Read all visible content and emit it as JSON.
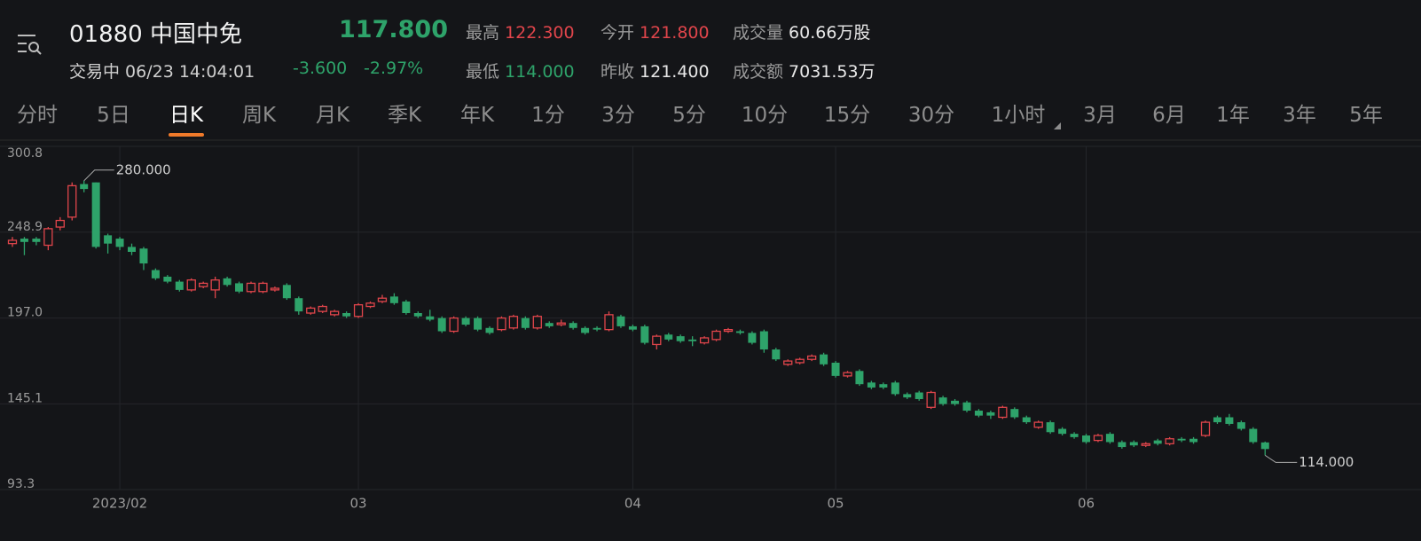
{
  "header": {
    "title": "01880 中国中免",
    "price": "117.800",
    "status": "交易中 06/23 14:04:01",
    "change": "-3.600",
    "change_pct": "-2.97%",
    "stats": [
      {
        "label": "最高",
        "value": "122.300",
        "color": "#e0454b"
      },
      {
        "label": "今开",
        "value": "121.800",
        "color": "#e0454b"
      },
      {
        "label": "成交量",
        "value": "60.66万股",
        "color": "#e8e8e8"
      },
      {
        "label": "最低",
        "value": "114.000",
        "color": "#2ea36a"
      },
      {
        "label": "昨收",
        "value": "121.400",
        "color": "#e8e8e8"
      },
      {
        "label": "成交额",
        "value": "7031.53万",
        "color": "#e8e8e8"
      }
    ]
  },
  "tabs": {
    "items": [
      "分时",
      "5日",
      "日K",
      "周K",
      "月K",
      "季K",
      "年K",
      "1分",
      "3分",
      "5分",
      "10分",
      "15分",
      "30分",
      "1小时",
      "3月",
      "6月",
      "1年",
      "3年",
      "5年"
    ],
    "active": 2
  },
  "chart_data": {
    "type": "candlestick",
    "up_color": "#e0454b",
    "down_color": "#2ea36a",
    "grid": true,
    "ylim": [
      93.3,
      300.8
    ],
    "yticks": [
      300.8,
      248.9,
      {
        "value": 197,
        "label": "197.0"
      },
      145.1,
      93.3
    ],
    "annotations": [
      "280.000",
      "114.000"
    ],
    "categories": [
      null,
      null,
      null,
      null,
      null,
      null,
      null,
      null,
      null,
      "2023/02",
      null,
      null,
      null,
      null,
      null,
      null,
      null,
      null,
      null,
      null,
      null,
      null,
      null,
      null,
      null,
      null,
      null,
      null,
      null,
      "03",
      null,
      null,
      null,
      null,
      null,
      null,
      null,
      null,
      null,
      null,
      null,
      null,
      null,
      null,
      null,
      null,
      null,
      null,
      null,
      null,
      null,
      null,
      "04",
      null,
      null,
      null,
      null,
      null,
      null,
      null,
      null,
      null,
      null,
      null,
      null,
      null,
      null,
      null,
      null,
      "05",
      null,
      null,
      null,
      null,
      null,
      null,
      null,
      null,
      null,
      null,
      null,
      null,
      null,
      null,
      null,
      null,
      null,
      null,
      null,
      null,
      "06",
      null,
      null,
      null,
      null,
      null,
      null,
      null,
      null,
      null,
      null,
      null,
      null,
      null,
      null,
      null
    ],
    "open": [
      242,
      245,
      245,
      241,
      252,
      258,
      278,
      279,
      247,
      245,
      240,
      239,
      226,
      222,
      219,
      214,
      216,
      214,
      221,
      218,
      213,
      213,
      214,
      217,
      209,
      200,
      201,
      199,
      200,
      198,
      204,
      207,
      210,
      207,
      200,
      198,
      197,
      189,
      197,
      197,
      191,
      190,
      191,
      197,
      191,
      194,
      193,
      194,
      191,
      191,
      190,
      198,
      192,
      192,
      181,
      187,
      186,
      184,
      182,
      184,
      189,
      189,
      188,
      189,
      178,
      169,
      170,
      172,
      175,
      170,
      162,
      165,
      158,
      157,
      158,
      151,
      152,
      143,
      149,
      147,
      146,
      141,
      140,
      137,
      142,
      137,
      131,
      134,
      130,
      127,
      126,
      123,
      127,
      122,
      122,
      120,
      123,
      121,
      124,
      124,
      126,
      137,
      137,
      134,
      130,
      121.8
    ],
    "high": [
      246,
      246,
      246,
      252,
      258,
      279,
      280,
      279,
      248,
      246,
      242,
      240,
      227,
      223,
      220,
      221,
      219,
      222,
      222,
      219,
      219,
      219,
      216,
      218,
      210,
      204,
      205,
      202,
      201,
      206,
      207,
      211,
      212,
      208,
      201,
      202,
      198,
      198,
      198,
      198,
      192,
      198,
      199,
      198,
      199,
      195,
      196,
      195,
      192,
      192,
      201,
      199,
      193,
      193,
      187,
      188,
      187,
      186,
      186,
      190,
      191,
      190,
      189,
      190,
      179,
      172,
      173,
      175,
      176,
      171,
      165,
      166,
      159,
      158,
      159,
      152,
      153,
      153,
      150,
      148,
      147,
      142,
      141,
      144,
      143,
      138,
      135,
      135,
      131,
      128,
      127,
      127,
      128,
      123,
      123,
      122,
      124,
      125,
      125,
      125,
      135,
      138,
      139,
      135,
      131,
      122.3
    ],
    "low": [
      240,
      235,
      241,
      238,
      250,
      256,
      273,
      239,
      236,
      238,
      235,
      226,
      220,
      218,
      213,
      213,
      215,
      209,
      216,
      212,
      212,
      212,
      213,
      208,
      199,
      199,
      200,
      198,
      197,
      197,
      203,
      206,
      205,
      199,
      197,
      195,
      188,
      188,
      192,
      189,
      187,
      189,
      190,
      190,
      190,
      191,
      192,
      190,
      187,
      189,
      189,
      191,
      189,
      181,
      178,
      183,
      182,
      180,
      181,
      183,
      188,
      187,
      181,
      176,
      171,
      168,
      169,
      171,
      168,
      161,
      161,
      156,
      154,
      154,
      150,
      148,
      147,
      142,
      144,
      144,
      140,
      137,
      136,
      136,
      136,
      133,
      130,
      127,
      126,
      124,
      121,
      122,
      121,
      118,
      119,
      119,
      120,
      120,
      122,
      121,
      125,
      133,
      132,
      129,
      121,
      114
    ],
    "close": [
      244,
      243,
      243,
      251,
      256,
      277,
      275,
      240,
      242,
      240,
      237,
      230,
      221,
      219,
      214,
      220,
      218,
      220,
      217,
      213,
      218,
      218,
      215,
      209,
      201,
      203,
      204,
      201,
      198,
      205,
      206,
      209,
      206,
      200,
      198,
      196,
      189,
      197,
      193,
      190,
      188,
      197,
      198,
      191,
      198,
      192,
      194,
      191,
      188,
      190,
      199,
      192,
      190,
      182,
      186,
      184,
      183,
      183,
      185,
      189,
      190,
      188,
      182,
      178,
      172,
      171,
      172,
      174,
      169,
      162,
      164,
      157,
      155,
      155,
      151,
      149,
      148,
      152,
      145,
      145,
      141,
      138,
      138,
      143,
      137,
      134,
      134,
      128,
      127,
      125,
      122,
      126,
      122,
      119,
      120,
      121,
      121,
      124,
      123,
      122,
      134,
      134,
      133,
      130,
      122,
      117.8
    ]
  }
}
